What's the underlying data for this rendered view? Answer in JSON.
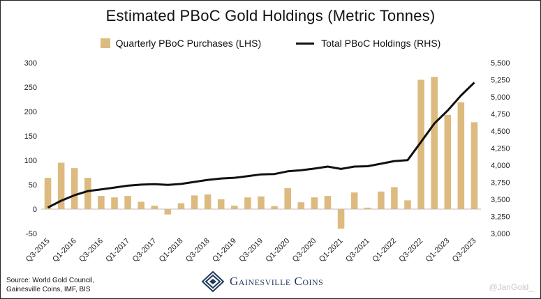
{
  "title": "Estimated PBoC Gold Holdings (Metric Tonnes)",
  "legend": {
    "bars": "Quarterly PBoC Purchases (LHS)",
    "line": "Total PBoC Holdings (RHS)"
  },
  "footer": {
    "source_line1": "Source: World Gold Council,",
    "source_line2": "Gainesville Coins, IMF, BIS",
    "logo_text": "Gainesville Coins",
    "watermark": "@JanGold_"
  },
  "colors": {
    "bars": "#DDBA7F",
    "line": "#111111",
    "logo": "#1F3A5C"
  },
  "chart_data": {
    "type": "bar",
    "title": "Estimated PBoC Gold Holdings (Metric Tonnes)",
    "categories": [
      "Q3-2015",
      "Q4-2015",
      "Q1-2016",
      "Q2-2016",
      "Q3-2016",
      "Q4-2016",
      "Q1-2017",
      "Q2-2017",
      "Q3-2017",
      "Q4-2017",
      "Q1-2018",
      "Q2-2018",
      "Q3-2018",
      "Q4-2018",
      "Q1-2019",
      "Q2-2019",
      "Q3-2019",
      "Q4-2019",
      "Q1-2020",
      "Q2-2020",
      "Q3-2020",
      "Q4-2020",
      "Q1-2021",
      "Q2-2021",
      "Q3-2021",
      "Q4-2021",
      "Q1-2022",
      "Q2-2022",
      "Q3-2022",
      "Q4-2022",
      "Q1-2023",
      "Q2-2023",
      "Q3-2023"
    ],
    "x_tick_labels": [
      "Q3-2015",
      "Q1-2016",
      "Q3-2016",
      "Q1-2017",
      "Q3-2017",
      "Q1-2018",
      "Q3-2018",
      "Q1-2019",
      "Q3-2019",
      "Q1-2020",
      "Q3-2020",
      "Q1-2021",
      "Q3-2021",
      "Q1-2022",
      "Q3-2022",
      "Q1-2023",
      "Q3-2023"
    ],
    "series": [
      {
        "name": "Quarterly PBoC Purchases (LHS)",
        "axis": "left",
        "kind": "bar",
        "values": [
          64,
          95,
          84,
          64,
          27,
          24,
          27,
          15,
          7,
          -11,
          12,
          28,
          30,
          20,
          7,
          24,
          26,
          6,
          43,
          14,
          24,
          27,
          -40,
          34,
          3,
          36,
          45,
          18,
          265,
          271,
          193,
          219,
          178
        ]
      },
      {
        "name": "Total PBoC Holdings (RHS)",
        "axis": "right",
        "kind": "line",
        "values": [
          3380,
          3480,
          3560,
          3620,
          3645,
          3672,
          3700,
          3715,
          3722,
          3711,
          3726,
          3755,
          3785,
          3805,
          3815,
          3840,
          3865,
          3870,
          3910,
          3925,
          3950,
          3980,
          3945,
          3980,
          3985,
          4021,
          4060,
          4075,
          4340,
          4610,
          4800,
          5020,
          5210
        ]
      }
    ],
    "y_left": {
      "ticks": [
        -50,
        0,
        50,
        100,
        150,
        200,
        250,
        300
      ],
      "ylim": [
        -50,
        300
      ]
    },
    "y_right": {
      "ticks": [
        "3,000",
        "3,250",
        "3,500",
        "3,750",
        "4,000",
        "4,250",
        "4,500",
        "4,750",
        "5,000",
        "5,250",
        "5,500"
      ],
      "ylim": [
        3000,
        5500
      ]
    },
    "grid": false,
    "legend_position": "top"
  }
}
